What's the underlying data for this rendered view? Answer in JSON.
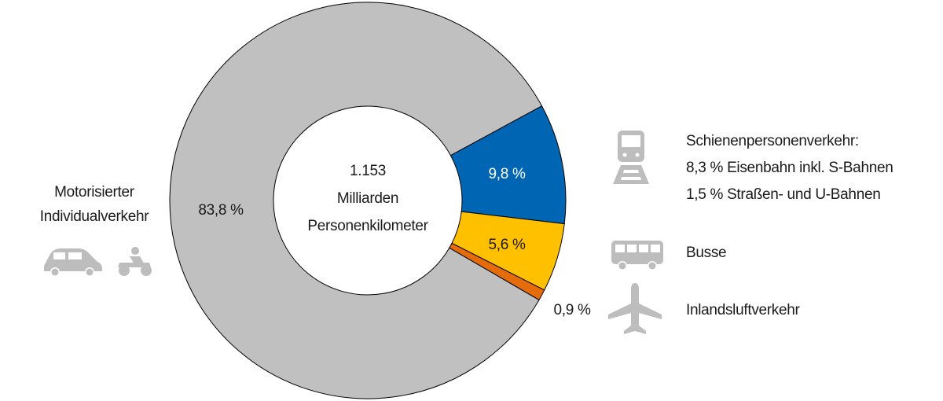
{
  "chart_data": {
    "type": "donut",
    "center_text": [
      "1.153",
      "Milliarden",
      "Personenkilometer"
    ],
    "categories": [
      [
        "Motorisierter",
        "Individualverkehr"
      ],
      [
        "Schienenpersonenverkehr:",
        "8,3 % Eisenbahn inkl. S-Bahnen",
        "1,5 % Straßen- und U-Bahnen"
      ],
      [
        "Busse"
      ],
      [
        "Inlandsluftverkehr"
      ]
    ],
    "values": [
      83.8,
      9.8,
      5.6,
      0.9
    ],
    "value_labels": [
      "83,8 %",
      "9,8 %",
      "5,6 %",
      "0,9 %"
    ],
    "colors": [
      "#c0c0c0",
      "#0066b3",
      "#ffc000",
      "#e46c0a"
    ]
  }
}
